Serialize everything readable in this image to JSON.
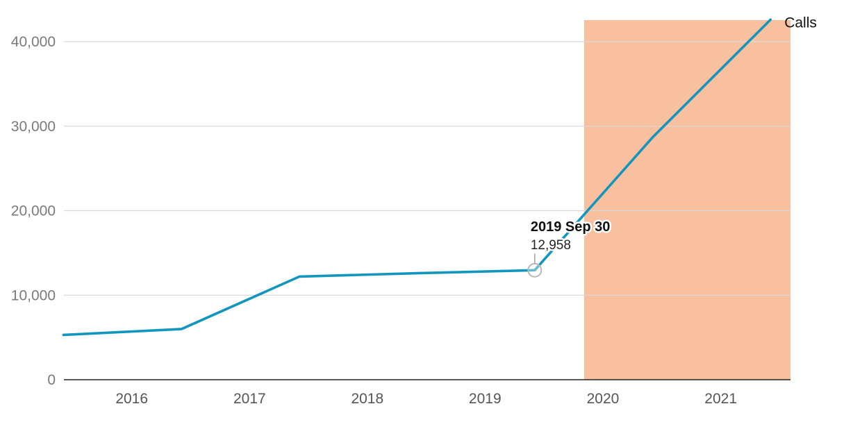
{
  "chart_data": {
    "type": "line",
    "title": "",
    "xlabel": "",
    "ylabel": "",
    "ylim": [
      0,
      42500
    ],
    "xlim": [
      "2015-10-01",
      "2021-12-01"
    ],
    "y_ticks": [
      0,
      10000,
      20000,
      30000,
      40000
    ],
    "y_tick_labels": [
      "0",
      "10,000",
      "20,000",
      "30,000",
      "40,000"
    ],
    "x_ticks": [
      "2016-01-01",
      "2017-01-01",
      "2018-01-01",
      "2019-01-01",
      "2020-01-01",
      "2021-01-01"
    ],
    "x_tick_labels": [
      "2016",
      "2017",
      "2018",
      "2019",
      "2020",
      "2021"
    ],
    "grid": "horizontal",
    "series": [
      {
        "name": "Calls",
        "color": "#1296bd",
        "x": [
          "2015-09-30",
          "2016-09-30",
          "2017-09-30",
          "2018-09-30",
          "2019-09-30",
          "2020-09-30",
          "2021-09-30"
        ],
        "values": [
          5300,
          6000,
          12200,
          12600,
          12958,
          28700,
          42600
        ]
      }
    ],
    "highlight_band": {
      "from": "2020-03-01",
      "to": "2021-12-01",
      "color": "#f9c0a0"
    },
    "tooltip": {
      "series": 0,
      "index": 4,
      "date_label": "2019 Sep 30",
      "value_label": "12,958"
    }
  }
}
